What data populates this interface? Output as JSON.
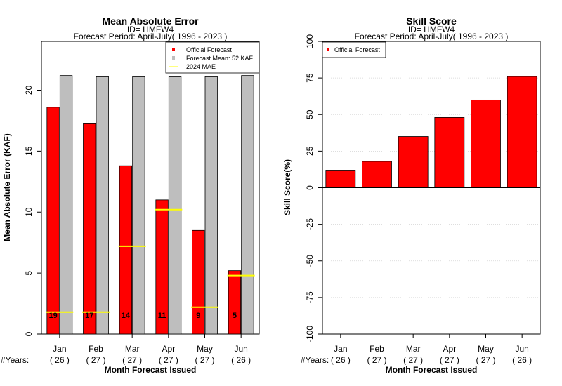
{
  "chart_data": [
    {
      "type": "bar",
      "title": "Mean Absolute Error",
      "subtitle_lines": [
        "ID= HMFW4",
        "Forecast Period: April-July( 1996 - 2023 )"
      ],
      "ylabel": "Mean Absolute Error (KAF)",
      "xlabel": "Month Forecast Issued",
      "years_prefix": "#Years:",
      "ylim": [
        0,
        24
      ],
      "yticks": [
        0,
        5,
        10,
        15,
        20
      ],
      "categories": [
        "Jan",
        "Feb",
        "Mar",
        "Apr",
        "May",
        "Jun"
      ],
      "years": [
        "( 26 )",
        "( 27 )",
        "( 27 )",
        "( 27 )",
        "( 27 )",
        "( 26 )"
      ],
      "series": [
        {
          "name": "Official Forecast",
          "color": "#ff0000",
          "values": [
            18.6,
            17.3,
            13.8,
            11.0,
            8.5,
            5.2
          ]
        },
        {
          "name": "Forecast Mean: 52 KAF",
          "color": "#bebebe",
          "values": [
            21.2,
            21.1,
            21.1,
            21.1,
            21.1,
            21.2
          ]
        }
      ],
      "mae_2024": {
        "name": " 2024  MAE",
        "color": "#ffff00",
        "values": [
          1.8,
          1.8,
          7.2,
          10.2,
          2.2,
          4.8
        ]
      },
      "bar_labels": [
        "19",
        "17",
        "14",
        "11",
        "9",
        "5"
      ],
      "legend_position": "top-right",
      "grid": false
    },
    {
      "type": "bar",
      "title": "Skill Score",
      "subtitle_lines": [
        "ID= HMFW4",
        "Forecast Period: April-July( 1996 - 2023 )"
      ],
      "ylabel": "Skill Score(%)",
      "xlabel": "Month Forecast Issued",
      "years_prefix": "#Years:",
      "ylim": [
        -100,
        100
      ],
      "yticks": [
        -100,
        -75,
        -50,
        -25,
        0,
        25,
        50,
        75,
        100
      ],
      "categories": [
        "Jan",
        "Feb",
        "Mar",
        "Apr",
        "May",
        "Jun"
      ],
      "years": [
        "( 26 )",
        "( 27 )",
        "( 27 )",
        "( 27 )",
        "( 27 )",
        "( 26 )"
      ],
      "series": [
        {
          "name": "Official Forecast",
          "color": "#ff0000",
          "values": [
            12,
            18,
            35,
            48,
            60,
            76
          ]
        }
      ],
      "legend_position": "top-left",
      "grid": true
    }
  ]
}
